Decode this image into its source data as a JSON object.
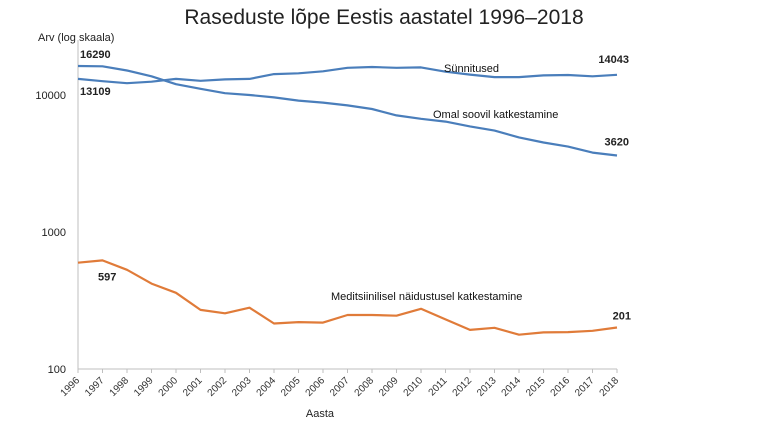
{
  "chart_data": {
    "type": "line",
    "title": "Raseduste lõpe Eestis aastatel 1996–2018",
    "ylabel": "Arv (log skaala)",
    "xlabel": "Aasta",
    "yscale": "log",
    "ylim": [
      100,
      20000
    ],
    "yticks": [
      "100",
      "1000",
      "10000"
    ],
    "x": [
      "1996",
      "1997",
      "1998",
      "1999",
      "2000",
      "2001",
      "2002",
      "2003",
      "2004",
      "2005",
      "2006",
      "2007",
      "2008",
      "2009",
      "2010",
      "2011",
      "2012",
      "2013",
      "2014",
      "2015",
      "2016",
      "2017",
      "2018"
    ],
    "series": [
      {
        "name": "Sünnitused",
        "color": "#4a7ebb",
        "values": [
          13109,
          12600,
          12200,
          12500,
          13100,
          12700,
          13000,
          13100,
          14200,
          14400,
          14900,
          15800,
          16000,
          15800,
          15900,
          14800,
          14100,
          13500,
          13500,
          13900,
          14000,
          13700,
          14043
        ]
      },
      {
        "name": "Omal soovil katkestamine",
        "color": "#4a7ebb",
        "values": [
          16290,
          16200,
          15100,
          13700,
          12000,
          11100,
          10300,
          10000,
          9600,
          9100,
          8800,
          8400,
          7900,
          7100,
          6700,
          6400,
          5900,
          5500,
          4900,
          4500,
          4200,
          3800,
          3620
        ]
      },
      {
        "name": "Meditsiinilisel näidustusel katkestamine",
        "color": "#e07b39",
        "values": [
          597,
          620,
          530,
          420,
          360,
          270,
          255,
          280,
          215,
          220,
          218,
          248,
          248,
          245,
          275,
          230,
          193,
          200,
          178,
          185,
          186,
          190,
          201
        ]
      }
    ],
    "data_labels": [
      {
        "series": 1,
        "index": 0,
        "text": "16290"
      },
      {
        "series": 0,
        "index": 0,
        "text": "13109"
      },
      {
        "series": 0,
        "index": 22,
        "text": "14043"
      },
      {
        "series": 1,
        "index": 22,
        "text": "3620"
      },
      {
        "series": 2,
        "index": 0,
        "text": "597"
      },
      {
        "series": 2,
        "index": 22,
        "text": "201"
      }
    ],
    "grid": false,
    "legend": "inline labels"
  }
}
